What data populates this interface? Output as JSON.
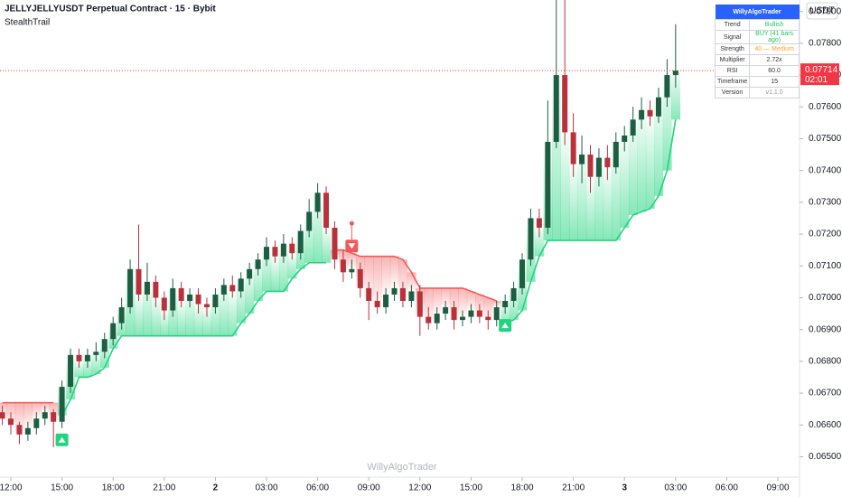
{
  "chart_data": {
    "type": "candlestick",
    "title": "JELLYJELLYUSDT Perpetual Contract · 15 · Bybit",
    "subtitle": "StealthTrail",
    "watermark": "WillyAlgoTrader",
    "currency": "USDT",
    "x": [
      -0.5,
      0,
      0.5,
      1,
      1.5,
      2,
      2.5,
      3,
      3.5,
      4,
      4.5,
      5,
      5.5,
      6,
      6.5,
      7,
      7.5,
      8,
      8.5,
      9,
      9.5,
      10,
      10.5,
      11,
      11.5,
      12,
      12.5,
      13,
      13.5,
      14,
      14.5,
      15,
      15.5,
      16,
      16.5,
      17,
      17.5,
      18,
      18.5,
      19,
      19.5,
      20,
      20.5,
      21,
      21.5,
      22,
      22.5,
      23,
      23.5,
      24,
      24.5,
      25,
      25.5,
      26,
      26.5,
      27,
      27.5,
      28,
      28.5,
      29,
      29.5,
      30,
      30.5,
      31,
      31.5,
      32,
      32.5,
      33,
      33.5,
      34,
      34.5,
      35,
      35.5,
      36,
      36.5,
      37,
      37.5,
      38,
      38.5,
      39
    ],
    "open": [
      0.0664,
      0.0662,
      0.066,
      0.0657,
      0.0659,
      0.0662,
      0.0664,
      0.0661,
      0.0672,
      0.0682,
      0.068,
      0.0682,
      0.0683,
      0.0687,
      0.0692,
      0.0697,
      0.0709,
      0.0701,
      0.0705,
      0.07,
      0.0696,
      0.0703,
      0.0699,
      0.0701,
      0.0698,
      0.0697,
      0.0701,
      0.0704,
      0.0702,
      0.0706,
      0.0709,
      0.0712,
      0.0716,
      0.0713,
      0.0717,
      0.0714,
      0.0721,
      0.0727,
      0.0733,
      0.0722,
      0.0712,
      0.0708,
      0.0709,
      0.0703,
      0.0699,
      0.0697,
      0.0701,
      0.0703,
      0.0699,
      0.0702,
      0.0694,
      0.0692,
      0.0695,
      0.0697,
      0.0693,
      0.0694,
      0.0696,
      0.0694,
      0.0693,
      0.0697,
      0.0699,
      0.0703,
      0.0712,
      0.0725,
      0.0722,
      0.0749,
      0.077,
      0.0752,
      0.0742,
      0.0745,
      0.0738,
      0.0744,
      0.0741,
      0.0749,
      0.0751,
      0.0756,
      0.0759,
      0.0757,
      0.0763,
      0.077
    ],
    "high": [
      0.0666,
      0.0664,
      0.0661,
      0.0661,
      0.0664,
      0.0666,
      0.0665,
      0.0674,
      0.0684,
      0.0684,
      0.0684,
      0.0686,
      0.0689,
      0.0694,
      0.07,
      0.0712,
      0.0723,
      0.0711,
      0.0707,
      0.0702,
      0.0706,
      0.0705,
      0.0703,
      0.0703,
      0.07,
      0.0703,
      0.0706,
      0.0707,
      0.0708,
      0.0711,
      0.0714,
      0.0719,
      0.0718,
      0.072,
      0.0719,
      0.0723,
      0.0731,
      0.0736,
      0.0735,
      0.0724,
      0.0715,
      0.0712,
      0.0711,
      0.0705,
      0.0702,
      0.0703,
      0.0705,
      0.0705,
      0.0704,
      0.0704,
      0.0697,
      0.0697,
      0.0699,
      0.0699,
      0.0696,
      0.0698,
      0.0698,
      0.0696,
      0.0699,
      0.0701,
      0.0705,
      0.0714,
      0.0728,
      0.0728,
      0.0762,
      0.0796,
      0.0796,
      0.0758,
      0.0751,
      0.0748,
      0.0747,
      0.0748,
      0.0752,
      0.0754,
      0.076,
      0.0763,
      0.0762,
      0.0766,
      0.0775,
      0.0786
    ],
    "low": [
      0.066,
      0.0657,
      0.0654,
      0.0655,
      0.0657,
      0.066,
      0.0653,
      0.0659,
      0.067,
      0.0678,
      0.0678,
      0.068,
      0.0681,
      0.0685,
      0.069,
      0.0695,
      0.0699,
      0.0699,
      0.0697,
      0.0693,
      0.0694,
      0.0697,
      0.0697,
      0.0695,
      0.0694,
      0.0695,
      0.0699,
      0.07,
      0.07,
      0.0704,
      0.0707,
      0.071,
      0.0711,
      0.0711,
      0.0712,
      0.0712,
      0.0719,
      0.0725,
      0.072,
      0.0709,
      0.0705,
      0.0706,
      0.07,
      0.0693,
      0.0695,
      0.0695,
      0.0699,
      0.0697,
      0.0697,
      0.0688,
      0.069,
      0.069,
      0.0693,
      0.069,
      0.0691,
      0.0692,
      0.0692,
      0.069,
      0.0691,
      0.0695,
      0.0697,
      0.0701,
      0.071,
      0.0719,
      0.072,
      0.0747,
      0.0748,
      0.0738,
      0.0736,
      0.0733,
      0.0735,
      0.0737,
      0.0739,
      0.0746,
      0.0749,
      0.0753,
      0.0754,
      0.0755,
      0.076,
      0.0766
    ],
    "close": [
      0.0662,
      0.066,
      0.0657,
      0.0659,
      0.0662,
      0.0664,
      0.0661,
      0.0672,
      0.0682,
      0.068,
      0.0682,
      0.0683,
      0.0687,
      0.0692,
      0.0697,
      0.0709,
      0.0701,
      0.0705,
      0.07,
      0.0696,
      0.0703,
      0.0699,
      0.0701,
      0.0698,
      0.0697,
      0.0701,
      0.0704,
      0.0702,
      0.0706,
      0.0709,
      0.0712,
      0.0716,
      0.0713,
      0.0717,
      0.0714,
      0.0721,
      0.0727,
      0.0733,
      0.0722,
      0.0712,
      0.0708,
      0.0709,
      0.0703,
      0.0699,
      0.0697,
      0.0701,
      0.0703,
      0.0699,
      0.0702,
      0.0694,
      0.0692,
      0.0695,
      0.0697,
      0.0693,
      0.0694,
      0.0696,
      0.0694,
      0.0693,
      0.0697,
      0.0699,
      0.0703,
      0.0712,
      0.0725,
      0.0722,
      0.0749,
      0.077,
      0.0752,
      0.0742,
      0.0745,
      0.0738,
      0.0744,
      0.0741,
      0.0749,
      0.0751,
      0.0756,
      0.0759,
      0.0757,
      0.0763,
      0.077,
      0.07714
    ],
    "up_color": "#1d5e43",
    "down_color": "#b8323c",
    "trail_series": [
      {
        "trend": "bull",
        "color": "#22d47e",
        "values": [
          null,
          null,
          null,
          null,
          null,
          null,
          null,
          0.0663,
          0.0668,
          0.0675,
          0.0675,
          0.0676,
          0.0678,
          0.0684,
          0.0688,
          0.0688,
          0.0688,
          0.0688,
          0.0688,
          0.0688,
          0.0688,
          0.0688,
          0.0688,
          0.0688,
          0.0688,
          0.0688,
          0.0688,
          0.0688,
          0.0692,
          0.0695,
          0.0699,
          0.0702,
          0.0702,
          0.0702,
          0.0706,
          0.0709,
          0.0711,
          0.0711,
          0.0711,
          null,
          null,
          null,
          null,
          null,
          null,
          null,
          null,
          null,
          null,
          null,
          null,
          null,
          null,
          null,
          null,
          null,
          null,
          null,
          null,
          0.0692,
          0.0693,
          0.0696,
          0.0705,
          0.0713,
          0.0718,
          0.0718,
          0.0718,
          0.0718,
          0.0718,
          0.0718,
          0.0718,
          0.0718,
          0.0718,
          0.0722,
          0.0726,
          0.0727,
          0.0728,
          0.0732,
          0.074,
          0.0756
        ]
      },
      {
        "trend": "bear",
        "color": "#f05a5a",
        "values": [
          0.0667,
          0.0667,
          0.0667,
          0.0667,
          0.0667,
          0.0667,
          0.0667,
          null,
          null,
          null,
          null,
          null,
          null,
          null,
          null,
          null,
          null,
          null,
          null,
          null,
          null,
          null,
          null,
          null,
          null,
          null,
          null,
          null,
          null,
          null,
          null,
          null,
          null,
          null,
          null,
          null,
          null,
          null,
          null,
          0.0715,
          0.0715,
          0.0714,
          0.0713,
          0.0713,
          0.0713,
          0.0713,
          0.0713,
          0.0712,
          0.0708,
          0.0703,
          0.0703,
          0.0703,
          0.0703,
          0.0703,
          0.0703,
          0.0702,
          0.0701,
          0.07,
          0.0699,
          null,
          null,
          null,
          null,
          null,
          null,
          null,
          null,
          null,
          null,
          null,
          null,
          null,
          null,
          null,
          null,
          null,
          null,
          null,
          null,
          null
        ]
      }
    ],
    "buy_signals": [
      3,
      29
    ],
    "sell_signals": [
      20
    ],
    "last_price": 0.07714,
    "countdown": "02:01",
    "xlim": [
      -0.636,
      46.27
    ],
    "ylim": [
      0.06436,
      0.07936
    ],
    "xticks": [
      {
        "value": 0,
        "label": "12:00"
      },
      {
        "value": 3,
        "label": "15:00"
      },
      {
        "value": 6,
        "label": "18:00"
      },
      {
        "value": 9,
        "label": "21:00"
      },
      {
        "value": 12,
        "label": "2"
      },
      {
        "value": 15,
        "label": "03:00"
      },
      {
        "value": 18,
        "label": "06:00"
      },
      {
        "value": 21,
        "label": "09:00"
      },
      {
        "value": 24,
        "label": "12:00"
      },
      {
        "value": 27,
        "label": "15:00"
      },
      {
        "value": 30,
        "label": "18:00"
      },
      {
        "value": 33,
        "label": "21:00"
      },
      {
        "value": 36,
        "label": "3"
      },
      {
        "value": 39,
        "label": "03:00"
      },
      {
        "value": 42,
        "label": "06:00"
      },
      {
        "value": 45,
        "label": "09:00"
      }
    ],
    "yticks": [
      {
        "value": 0.065,
        "label": "0.06500"
      },
      {
        "value": 0.066,
        "label": "0.06600"
      },
      {
        "value": 0.067,
        "label": "0.06700"
      },
      {
        "value": 0.068,
        "label": "0.06800"
      },
      {
        "value": 0.069,
        "label": "0.06900"
      },
      {
        "value": 0.07,
        "label": "0.07000"
      },
      {
        "value": 0.071,
        "label": "0.07100"
      },
      {
        "value": 0.072,
        "label": "0.07200"
      },
      {
        "value": 0.073,
        "label": "0.07300"
      },
      {
        "value": 0.074,
        "label": "0.07400"
      },
      {
        "value": 0.075,
        "label": "0.07500"
      },
      {
        "value": 0.076,
        "label": "0.07600"
      },
      {
        "value": 0.077,
        "label": "0.07700"
      },
      {
        "value": 0.078,
        "label": "0.07800"
      },
      {
        "value": 0.079,
        "label": "0.07900"
      }
    ]
  },
  "info_table": {
    "title": "WillyAlgoTrader",
    "rows": [
      [
        "Trend",
        "Bullish"
      ],
      [
        "Signal",
        "BUY (41 bars ago)"
      ],
      [
        "Strength",
        "40 — Medium"
      ],
      [
        "Multiplier",
        "2.72x"
      ],
      [
        "RSI",
        "60.0"
      ],
      [
        "Timeframe",
        "15"
      ],
      [
        "Version",
        "v1.1.0"
      ]
    ]
  }
}
